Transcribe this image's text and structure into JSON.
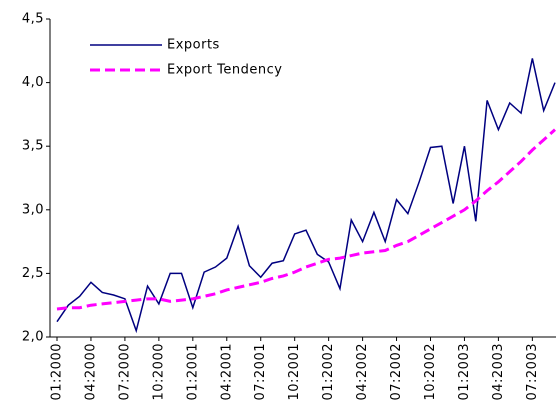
{
  "chart_data": {
    "type": "line",
    "categories": [
      "01:2000",
      null,
      null,
      "04:2000",
      null,
      null,
      "07:2000",
      null,
      null,
      "10:2000",
      null,
      null,
      "01:2001",
      null,
      null,
      "04:2001",
      null,
      null,
      "07:2001",
      null,
      null,
      "10:2001",
      null,
      null,
      "01:2002",
      null,
      null,
      "04:2002",
      null,
      null,
      "07:2002",
      null,
      null,
      "10:2002",
      null,
      null,
      "01:2003",
      null,
      null,
      "04:2003",
      null,
      null,
      "07:2003",
      null,
      null
    ],
    "series": [
      {
        "name": "Exports",
        "color": "#000080",
        "values": [
          2.12,
          2.25,
          2.32,
          2.43,
          2.35,
          2.33,
          2.3,
          2.05,
          2.4,
          2.26,
          2.5,
          2.5,
          2.23,
          2.51,
          2.55,
          2.62,
          2.87,
          2.56,
          2.47,
          2.58,
          2.6,
          2.81,
          2.84,
          2.65,
          2.59,
          2.38,
          2.92,
          2.75,
          2.98,
          2.75,
          3.08,
          2.97,
          3.22,
          3.49,
          3.5,
          3.05,
          3.5,
          2.91,
          3.86,
          3.63,
          3.84,
          3.76,
          4.19,
          3.78,
          4.0
        ]
      },
      {
        "name": "Export Tendency",
        "color": "#ff00ff",
        "dashed": true,
        "values": [
          2.22,
          2.23,
          2.23,
          2.25,
          2.26,
          2.27,
          2.28,
          2.29,
          2.3,
          2.3,
          2.28,
          2.29,
          2.3,
          2.32,
          2.34,
          2.37,
          2.39,
          2.41,
          2.43,
          2.46,
          2.48,
          2.51,
          2.55,
          2.58,
          2.61,
          2.62,
          2.64,
          2.66,
          2.67,
          2.68,
          2.72,
          2.75,
          2.8,
          2.85,
          2.9,
          2.95,
          3.0,
          3.07,
          3.15,
          3.22,
          3.3,
          3.38,
          3.47,
          3.55,
          3.63
        ]
      }
    ],
    "ylim": [
      2.0,
      4.5
    ],
    "yticks": [
      {
        "value": 2.0,
        "label": "2,0"
      },
      {
        "value": 2.5,
        "label": "2,5"
      },
      {
        "value": 3.0,
        "label": "3,0"
      },
      {
        "value": 3.5,
        "label": "3,5"
      },
      {
        "value": 4.0,
        "label": "4,0"
      },
      {
        "value": 4.5,
        "label": "4,5"
      }
    ],
    "legend": "upper left"
  }
}
